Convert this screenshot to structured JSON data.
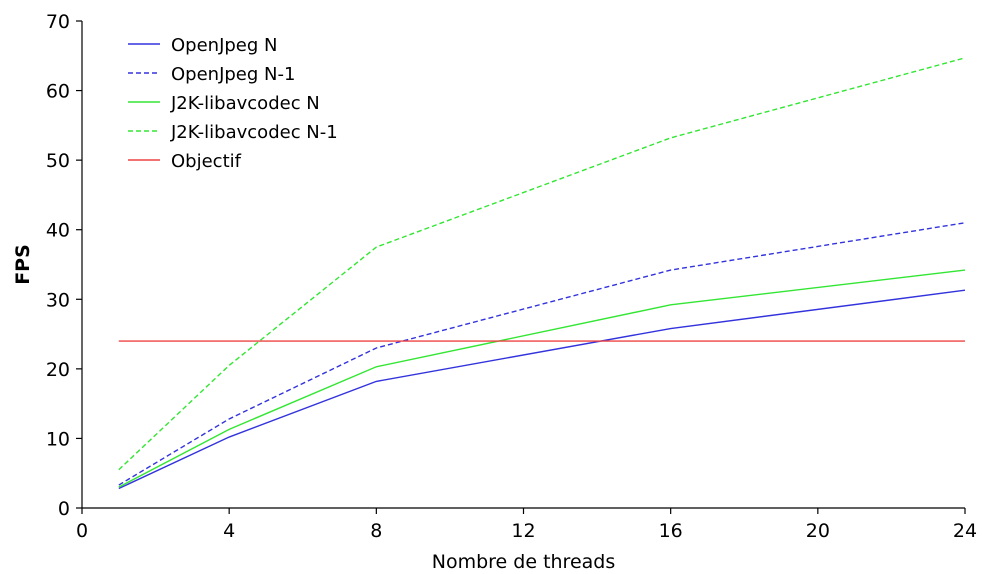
{
  "chart_data": {
    "type": "line",
    "title": "",
    "xlabel": "Nombre de threads",
    "ylabel": "FPS",
    "xlim": [
      0,
      24
    ],
    "ylim": [
      0,
      70
    ],
    "xticks": [
      0,
      4,
      8,
      12,
      16,
      20,
      24
    ],
    "yticks": [
      0,
      10,
      20,
      30,
      40,
      50,
      60,
      70
    ],
    "grid": false,
    "legend_position": "top-left",
    "series": [
      {
        "name": "OpenJpeg N",
        "color": "#3333dd",
        "style": "solid",
        "x": [
          1,
          4,
          8,
          16,
          24
        ],
        "y": [
          2.8,
          10.2,
          18.2,
          25.8,
          31.3
        ]
      },
      {
        "name": "OpenJpeg N-1",
        "color": "#3333dd",
        "style": "dashed",
        "x": [
          1,
          4,
          8,
          16,
          24
        ],
        "y": [
          3.3,
          12.8,
          23.0,
          34.2,
          41.0
        ]
      },
      {
        "name": "J2K-libavcodec N",
        "color": "#33e633",
        "style": "solid",
        "x": [
          1,
          4,
          8,
          16,
          24
        ],
        "y": [
          3.0,
          11.3,
          20.3,
          29.2,
          34.2
        ]
      },
      {
        "name": "J2K-libavcodec N-1",
        "color": "#33e633",
        "style": "dashed",
        "x": [
          1,
          4,
          8,
          16,
          24
        ],
        "y": [
          5.5,
          20.5,
          37.5,
          53.2,
          64.7
        ]
      },
      {
        "name": "Objectif",
        "color": "#ee4444",
        "style": "solid",
        "x": [
          1,
          24
        ],
        "y": [
          24,
          24
        ]
      }
    ]
  }
}
